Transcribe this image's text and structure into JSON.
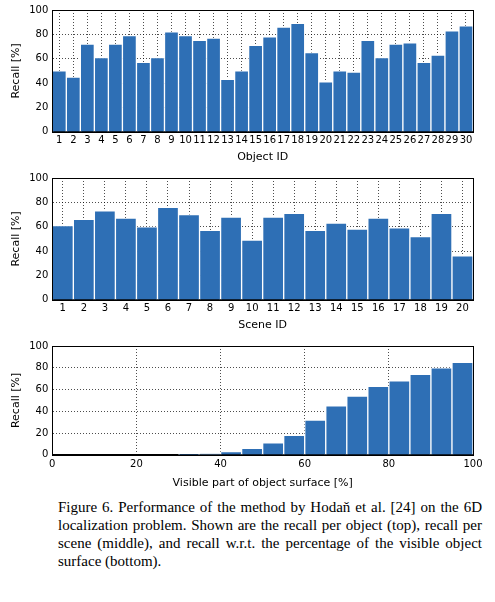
{
  "chart_data": [
    {
      "type": "bar",
      "xlabel": "Object ID",
      "ylabel": "Recall [%]",
      "categories": [
        1,
        2,
        3,
        4,
        5,
        6,
        7,
        8,
        9,
        10,
        11,
        12,
        13,
        14,
        15,
        16,
        17,
        18,
        19,
        20,
        21,
        22,
        23,
        24,
        25,
        26,
        27,
        28,
        29,
        30
      ],
      "values": [
        50,
        45,
        72,
        61,
        72,
        79,
        57,
        61,
        82,
        79,
        75,
        77,
        43,
        50,
        71,
        78,
        86,
        89,
        65,
        41,
        50,
        49,
        75,
        61,
        72,
        73,
        57,
        63,
        83,
        87
      ],
      "color": "#2e6fb5",
      "ylim": [
        0,
        100
      ],
      "yticks": [
        0,
        20,
        40,
        60,
        80,
        100
      ],
      "grid": true
    },
    {
      "type": "bar",
      "xlabel": "Scene ID",
      "ylabel": "Recall [%]",
      "categories": [
        1,
        2,
        3,
        4,
        5,
        6,
        7,
        8,
        9,
        10,
        11,
        12,
        13,
        14,
        15,
        16,
        17,
        18,
        19,
        20
      ],
      "values": [
        61,
        66,
        73,
        67,
        60,
        76,
        70,
        57,
        68,
        49,
        68,
        71,
        57,
        63,
        58,
        67,
        59,
        52,
        71,
        36
      ],
      "color": "#2e6fb5",
      "ylim": [
        0,
        100
      ],
      "yticks": [
        0,
        20,
        40,
        60,
        80,
        100
      ],
      "grid": true
    },
    {
      "type": "histogram",
      "xlabel": "Visible part of object surface [%]",
      "ylabel": "Recall [%]",
      "bins": [
        0,
        5,
        10,
        15,
        20,
        25,
        30,
        35,
        40,
        45,
        50,
        55,
        60,
        65,
        70,
        75,
        80,
        85,
        90,
        95,
        100
      ],
      "values": [
        0,
        0,
        0,
        0,
        0,
        0,
        0.5,
        1,
        3,
        6,
        11,
        18,
        32,
        45,
        54,
        63,
        68,
        74,
        80,
        85
      ],
      "color": "#2e6fb5",
      "xlim": [
        0,
        100
      ],
      "xticks": [
        0,
        20,
        40,
        60,
        80,
        100
      ],
      "ylim": [
        0,
        100
      ],
      "yticks": [
        0,
        20,
        40,
        60,
        80,
        100
      ],
      "grid": true
    }
  ],
  "caption": "Figure 6. Performance of the method by Hodaň et al. [24] on the 6D localization problem. Shown are the recall per object (top), recall per scene (middle), and recall w.r.t. the percentage of the visible object surface (bottom)."
}
